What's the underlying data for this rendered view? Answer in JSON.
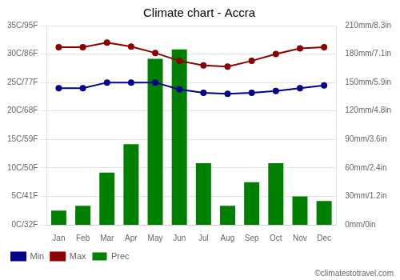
{
  "chart_data": {
    "type": "bar",
    "title": "Climate chart - Accra",
    "categories": [
      "Jan",
      "Feb",
      "Mar",
      "Apr",
      "May",
      "Jun",
      "Jul",
      "Aug",
      "Sep",
      "Oct",
      "Nov",
      "Dec"
    ],
    "series": [
      {
        "name": "Prec",
        "type": "bar",
        "color": "#008000",
        "axis": "y2",
        "values": [
          15,
          20,
          55,
          85,
          175,
          185,
          65,
          20,
          45,
          65,
          30,
          25
        ]
      },
      {
        "name": "Min",
        "type": "line",
        "color": "#00008B",
        "marker": "circle",
        "line_style": "solid",
        "values": [
          24.0,
          24.0,
          25.0,
          25.0,
          25.0,
          23.8,
          23.2,
          23.0,
          23.2,
          23.5,
          24.0,
          24.5
        ]
      },
      {
        "name": "Max",
        "type": "line",
        "color": "#8B0000",
        "marker": "circle",
        "line_style": "solid",
        "values": [
          31.2,
          31.2,
          32.0,
          31.3,
          30.2,
          28.8,
          28.0,
          27.8,
          28.8,
          30.0,
          31.0,
          31.2
        ]
      }
    ],
    "ylim": [
      0,
      35
    ],
    "yticks": [
      {
        "value": 0,
        "label": "0C/32F"
      },
      {
        "value": 5,
        "label": "5C/41F"
      },
      {
        "value": 10,
        "label": "10C/50F"
      },
      {
        "value": 15,
        "label": "15C/59F"
      },
      {
        "value": 20,
        "label": "20C/68F"
      },
      {
        "value": 25,
        "label": "25C/77F"
      },
      {
        "value": 30,
        "label": "30C/86F"
      },
      {
        "value": 35,
        "label": "35C/95F"
      }
    ],
    "y2lim": [
      0,
      210
    ],
    "y2ticks": [
      {
        "value": 0,
        "label": "0mm/0in"
      },
      {
        "value": 30,
        "label": "30mm/1.2in"
      },
      {
        "value": 60,
        "label": "60mm/2.4in"
      },
      {
        "value": 90,
        "label": "90mm/3.6in"
      },
      {
        "value": 120,
        "label": "120mm/4.8in"
      },
      {
        "value": 150,
        "label": "150mm/5.9in"
      },
      {
        "value": 180,
        "label": "180mm/7.1in"
      },
      {
        "value": 210,
        "label": "210mm/8.3in"
      }
    ],
    "grid": true,
    "legend": "bottom",
    "annotations": [
      "©climatestotravel.com"
    ]
  }
}
